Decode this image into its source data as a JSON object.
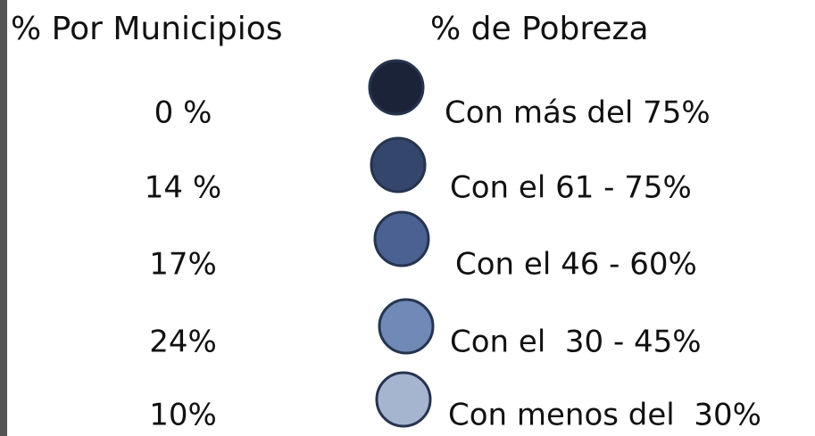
{
  "legend": {
    "headers": [
      "% Por Municipios",
      "% de Pobreza"
    ],
    "rows": [
      {
        "municipios": "0 %",
        "pobreza": "Con más del 75%",
        "color": "#1b2338"
      },
      {
        "municipios": "14 %",
        "pobreza": "Con el 61 - 75%",
        "color": "#34466b"
      },
      {
        "municipios": "17%",
        "pobreza": "Con el 46 - 60%",
        "color": "#4b6191"
      },
      {
        "municipios": "24%",
        "pobreza": "Con el  30 - 45%",
        "color": "#7089b6"
      },
      {
        "municipios": "10%",
        "pobreza": "Con menos del  30%",
        "color": "#a5b5d0"
      }
    ]
  }
}
